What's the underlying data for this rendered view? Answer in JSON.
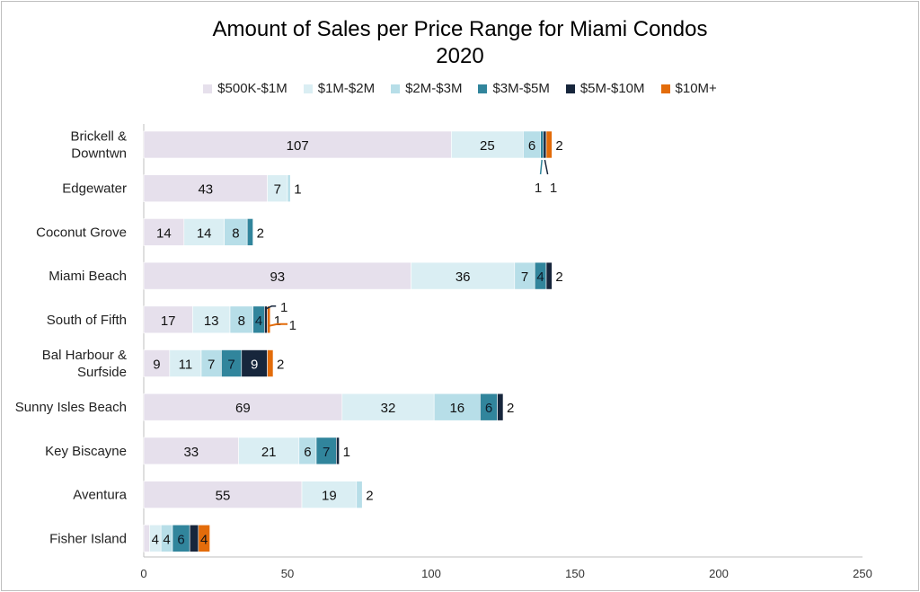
{
  "chart_data": {
    "type": "bar",
    "orientation": "horizontal",
    "stacked": true,
    "title": "Amount of Sales per Price Range for Miami Condos",
    "subtitle": "2020",
    "categories": [
      "Brickell & Downtwn",
      "Edgewater",
      "Coconut Grove",
      "Miami Beach",
      "South of Fifth",
      "Bal Harbour & Surfside",
      "Sunny Isles Beach",
      "Key Biscayne",
      "Aventura",
      "Fisher Island"
    ],
    "category_lines": [
      [
        "Brickell &",
        "Downtwn"
      ],
      [
        "Edgewater"
      ],
      [
        "Coconut Grove"
      ],
      [
        "Miami Beach"
      ],
      [
        "South of Fifth"
      ],
      [
        "Bal Harbour &",
        "Surfside"
      ],
      [
        "Sunny Isles Beach"
      ],
      [
        "Key Biscayne"
      ],
      [
        "Aventura"
      ],
      [
        "Fisher Island"
      ]
    ],
    "series": [
      {
        "name": "$500K-$1M",
        "color": "#e6e0ec",
        "values": [
          107,
          43,
          14,
          93,
          17,
          9,
          69,
          33,
          55,
          2
        ]
      },
      {
        "name": "$1M-$2M",
        "color": "#daeef3",
        "values": [
          25,
          7,
          14,
          36,
          13,
          11,
          32,
          21,
          19,
          4
        ]
      },
      {
        "name": "$2M-$3M",
        "color": "#b7dee8",
        "values": [
          6,
          1,
          8,
          7,
          8,
          7,
          16,
          6,
          2,
          4
        ]
      },
      {
        "name": "$3M-$5M",
        "color": "#31859c",
        "values": [
          1,
          0,
          2,
          4,
          4,
          7,
          6,
          7,
          0,
          6
        ]
      },
      {
        "name": "$5M-$10M",
        "color": "#17263c",
        "values": [
          1,
          0,
          0,
          2,
          1,
          9,
          2,
          1,
          0,
          3
        ]
      },
      {
        "name": "$10M+",
        "color": "#e36c0a",
        "values": [
          2,
          0,
          0,
          0,
          1,
          2,
          0,
          0,
          0,
          4
        ]
      }
    ],
    "xlim": [
      0,
      250
    ],
    "xticks": [
      0,
      50,
      100,
      150,
      200,
      250
    ],
    "legend_position": "top",
    "grid": false
  }
}
